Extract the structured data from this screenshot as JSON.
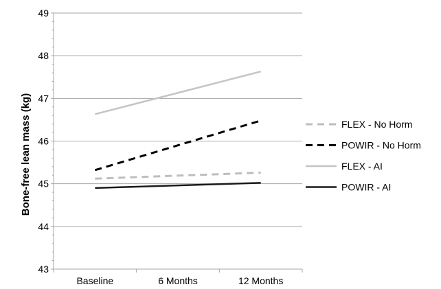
{
  "chart_data": {
    "type": "line",
    "title": "",
    "xlabel": "",
    "ylabel": "Bone-free lean mass (kg)",
    "ylim": [
      43,
      49
    ],
    "y_ticks": [
      43,
      44,
      45,
      46,
      47,
      48,
      49
    ],
    "categories": [
      "Baseline",
      "6 Months",
      "12 Months"
    ],
    "grid": "horizontal",
    "legend_position": "right",
    "series": [
      {
        "name": "FLEX - No Horm",
        "values": [
          45.12,
          45.19,
          45.26
        ],
        "color": "#bdbdbd",
        "dash": "dashed"
      },
      {
        "name": "POWIR - No Horm",
        "values": [
          45.32,
          45.9,
          46.48
        ],
        "color": "#000000",
        "dash": "dashed"
      },
      {
        "name": "FLEX - AI",
        "values": [
          46.63,
          47.13,
          47.63
        ],
        "color": "#c4c4c4",
        "dash": "solid"
      },
      {
        "name": "POWIR - AI",
        "values": [
          44.9,
          44.96,
          45.02
        ],
        "color": "#1a1a1a",
        "dash": "solid"
      }
    ]
  }
}
